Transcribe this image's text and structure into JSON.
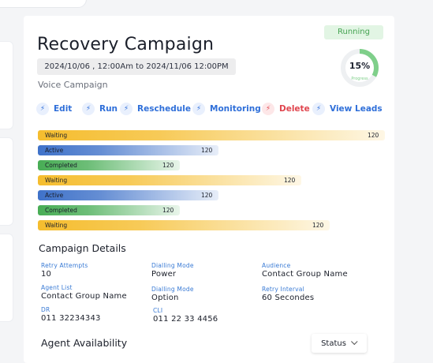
{
  "campaign": {
    "title": "Recovery Campaign",
    "date_range": "2024/10/06 , 12:00Am to 2024/11/06 12:00PM",
    "type": "Voice Campaign",
    "status": "Running",
    "progress_text": "15%",
    "progress_fraction": 0.15,
    "progress_label": "Progress"
  },
  "actions": [
    {
      "label": "Edit",
      "icon": "lightning-icon"
    },
    {
      "label": "Run",
      "icon": "lightning-icon"
    },
    {
      "label": "Reschedule",
      "icon": "lightning-icon"
    },
    {
      "label": "Monitoring",
      "icon": "lightning-icon"
    },
    {
      "label": "Delete",
      "icon": "lightning-icon"
    },
    {
      "label": "View Leads",
      "icon": "lightning-icon"
    }
  ],
  "bars": [
    {
      "label": "Waiting",
      "value": "120",
      "fill": 1.0,
      "color": "#f5bd2e"
    },
    {
      "label": "Active",
      "value": "120",
      "fill": 0.52,
      "color": "#3f72c9"
    },
    {
      "label": "Completed",
      "value": "120",
      "fill": 0.41,
      "color": "#48ad55"
    },
    {
      "label": "Waiting",
      "value": "120",
      "fill": 0.76,
      "color": "#f5bd2e"
    },
    {
      "label": "Active",
      "value": "120",
      "fill": 0.52,
      "color": "#3f72c9"
    },
    {
      "label": "Completed",
      "value": "120",
      "fill": 0.41,
      "color": "#48ad55"
    },
    {
      "label": "Waiting",
      "value": "120",
      "fill": 0.84,
      "color": "#f5bd2e"
    }
  ],
  "details": {
    "title": "Campaign Details",
    "fields": [
      {
        "label": "Retry Attempts",
        "value": "10"
      },
      {
        "label": "Dialling Mode",
        "value": "Power"
      },
      {
        "label": "Audience",
        "value": "Contact Group Name"
      },
      {
        "label": "Agent List",
        "value": "Contact Group Name"
      },
      {
        "label": "Dialling Mode",
        "value": "Option"
      },
      {
        "label": "Retry Interval",
        "value": "60 Secondes"
      },
      {
        "label": "DR",
        "value": "011 32234343"
      },
      {
        "label": "CLI",
        "value": "011 22 33 4456"
      }
    ]
  },
  "availability": {
    "title": "Agent Availability",
    "filter_label": "Status"
  }
}
